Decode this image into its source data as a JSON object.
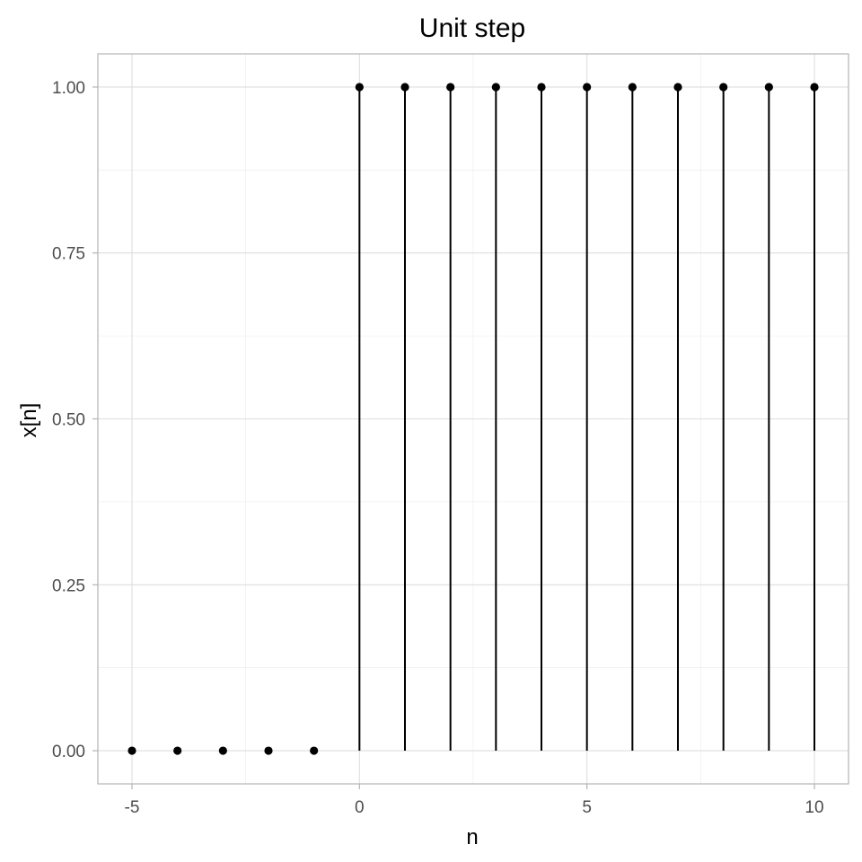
{
  "chart_data": {
    "type": "scatter",
    "title": "Unit step",
    "xlabel": "n",
    "ylabel": "x[n]",
    "xlim": [
      -5.75,
      10.75
    ],
    "ylim": [
      -0.05,
      1.05
    ],
    "x_ticks": [
      -5,
      0,
      5,
      10
    ],
    "x_tick_labels": [
      "-5",
      "0",
      "5",
      "10"
    ],
    "y_ticks": [
      0,
      0.25,
      0.5,
      0.75,
      1
    ],
    "y_tick_labels": [
      "0.00",
      "0.25",
      "0.50",
      "0.75",
      "1.00"
    ],
    "x_minor_ticks": [
      -2.5,
      2.5,
      7.5
    ],
    "y_minor_ticks": [
      0.125,
      0.375,
      0.625,
      0.875
    ],
    "grid": true,
    "legend": "none",
    "style": "stem",
    "colors": {
      "marks": "#000000",
      "grid": "#dedede",
      "panel_border": "#b3b3b3",
      "tick_text": "#4d4d4d"
    },
    "points": [
      {
        "x": -5,
        "y": 0
      },
      {
        "x": -4,
        "y": 0
      },
      {
        "x": -3,
        "y": 0
      },
      {
        "x": -2,
        "y": 0
      },
      {
        "x": -1,
        "y": 0
      },
      {
        "x": 0,
        "y": 1
      },
      {
        "x": 1,
        "y": 1
      },
      {
        "x": 2,
        "y": 1
      },
      {
        "x": 3,
        "y": 1
      },
      {
        "x": 4,
        "y": 1
      },
      {
        "x": 5,
        "y": 1
      },
      {
        "x": 6,
        "y": 1
      },
      {
        "x": 7,
        "y": 1
      },
      {
        "x": 8,
        "y": 1
      },
      {
        "x": 9,
        "y": 1
      },
      {
        "x": 10,
        "y": 1
      }
    ]
  }
}
